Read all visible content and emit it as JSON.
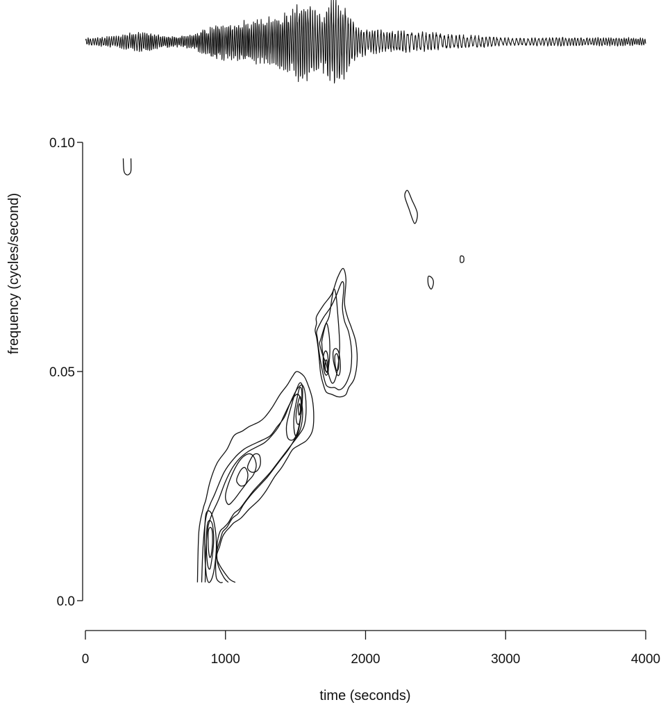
{
  "chart_data": [
    {
      "type": "line",
      "title": "",
      "xlabel": "",
      "ylabel": "",
      "description_kind": "seismogram",
      "xlim": [
        0,
        4000
      ],
      "envelope": {
        "x": [
          0,
          150,
          250,
          350,
          450,
          550,
          650,
          750,
          850,
          950,
          1050,
          1150,
          1250,
          1350,
          1450,
          1500,
          1550,
          1600,
          1650,
          1700,
          1750,
          1800,
          1850,
          1900,
          1950,
          2000,
          2100,
          2200,
          2300,
          2400,
          2500,
          2600,
          2700,
          2800,
          2900,
          3000,
          3200,
          3400,
          3600,
          3800,
          4000
        ],
        "amplitude": [
          0.08,
          0.12,
          0.15,
          0.22,
          0.22,
          0.14,
          0.12,
          0.16,
          0.28,
          0.42,
          0.4,
          0.48,
          0.5,
          0.58,
          0.66,
          0.8,
          1.0,
          0.88,
          0.62,
          0.7,
          0.92,
          1.0,
          0.82,
          0.55,
          0.35,
          0.3,
          0.26,
          0.24,
          0.25,
          0.22,
          0.2,
          0.16,
          0.15,
          0.14,
          0.12,
          0.09,
          0.09,
          0.1,
          0.09,
          0.1,
          0.08
        ]
      }
    },
    {
      "type": "contour",
      "title": "",
      "xlabel": "time (seconds)",
      "ylabel": "frequency (cycles/second)",
      "xlim": [
        0,
        4000
      ],
      "ylim": [
        0.0,
        0.1
      ],
      "xticks": [
        0,
        1000,
        2000,
        3000,
        4000
      ],
      "xtick_labels": [
        "0",
        "1000",
        "2000",
        "3000",
        "4000"
      ],
      "yticks": [
        0.0,
        0.05,
        0.1
      ],
      "ytick_labels": [
        "0.0",
        "0.05",
        "0.10"
      ],
      "grid": false,
      "contours": [
        {
          "kind": "open",
          "x": [
            270,
            275,
            290,
            310,
            325,
            325
          ],
          "y": [
            0.0965,
            0.0938,
            0.093,
            0.093,
            0.0938,
            0.0965
          ]
        },
        {
          "kind": "closed",
          "x": [
            2300,
            2330,
            2370,
            2350,
            2310,
            2280
          ],
          "y": [
            0.0895,
            0.0875,
            0.0845,
            0.0823,
            0.0855,
            0.0883
          ]
        },
        {
          "kind": "closed",
          "x": [
            2450,
            2475,
            2485,
            2470,
            2450,
            2445
          ],
          "y": [
            0.0708,
            0.0704,
            0.0693,
            0.068,
            0.0688,
            0.07
          ]
        },
        {
          "kind": "closed",
          "x": [
            2680,
            2700,
            2700,
            2680,
            2675
          ],
          "y": [
            0.0752,
            0.075,
            0.074,
            0.0738,
            0.0745
          ]
        },
        {
          "kind": "open",
          "x": [
            800,
            810,
            840,
            860,
            890,
            940,
            1010,
            1060,
            1120,
            1170,
            1240,
            1280,
            1330,
            1390,
            1440,
            1480,
            1510,
            1560,
            1590,
            1620,
            1630,
            1620,
            1580,
            1530,
            1480,
            1440,
            1400,
            1350,
            1290,
            1240,
            1170,
            1110,
            1060,
            1030,
            1000,
            980,
            960,
            940,
            1020,
            1070
          ],
          "y": [
            0.004,
            0.015,
            0.02,
            0.022,
            0.026,
            0.03,
            0.033,
            0.036,
            0.037,
            0.038,
            0.039,
            0.04,
            0.042,
            0.045,
            0.047,
            0.049,
            0.05,
            0.049,
            0.047,
            0.044,
            0.04,
            0.037,
            0.035,
            0.034,
            0.033,
            0.031,
            0.029,
            0.027,
            0.024,
            0.022,
            0.02,
            0.018,
            0.017,
            0.016,
            0.015,
            0.014,
            0.012,
            0.009,
            0.005,
            0.004
          ]
        },
        {
          "kind": "open",
          "x": [
            830,
            840,
            860,
            890,
            920,
            990,
            1060,
            1130,
            1190,
            1260,
            1320,
            1370,
            1420,
            1460,
            1490,
            1520,
            1550,
            1570,
            1575,
            1560,
            1520,
            1470,
            1420,
            1370,
            1320,
            1260,
            1200,
            1150,
            1100,
            1060,
            1020,
            990,
            960,
            940,
            945,
            990,
            1020
          ],
          "y": [
            0.004,
            0.012,
            0.018,
            0.021,
            0.023,
            0.028,
            0.031,
            0.033,
            0.034,
            0.035,
            0.036,
            0.038,
            0.04,
            0.043,
            0.045,
            0.0465,
            0.047,
            0.045,
            0.041,
            0.038,
            0.036,
            0.034,
            0.032,
            0.03,
            0.028,
            0.026,
            0.024,
            0.022,
            0.02,
            0.019,
            0.017,
            0.016,
            0.015,
            0.012,
            0.008,
            0.005,
            0.004
          ]
        },
        {
          "kind": "open",
          "x": [
            855,
            860,
            875,
            905,
            950,
            1000,
            1050,
            1100,
            1160,
            1220,
            1280,
            1330,
            1380,
            1420,
            1460,
            1490,
            1520,
            1545,
            1550,
            1530,
            1490,
            1450,
            1400,
            1350,
            1300,
            1240,
            1180,
            1130,
            1090,
            1050,
            1010,
            980,
            960,
            940,
            930,
            935,
            960,
            980
          ],
          "y": [
            0.004,
            0.011,
            0.016,
            0.019,
            0.022,
            0.026,
            0.029,
            0.031,
            0.0325,
            0.0335,
            0.0345,
            0.036,
            0.038,
            0.0405,
            0.043,
            0.0445,
            0.045,
            0.043,
            0.04,
            0.037,
            0.035,
            0.033,
            0.031,
            0.029,
            0.027,
            0.025,
            0.023,
            0.021,
            0.019,
            0.018,
            0.016,
            0.015,
            0.013,
            0.011,
            0.008,
            0.005,
            0.004,
            0.004
          ]
        },
        {
          "kind": "closed",
          "x": [
            855,
            870,
            900,
            925,
            935,
            925,
            905,
            880,
            862,
            852
          ],
          "y": [
            0.0175,
            0.0195,
            0.019,
            0.016,
            0.012,
            0.008,
            0.005,
            0.004,
            0.006,
            0.011
          ]
        },
        {
          "kind": "closed",
          "x": [
            870,
            885,
            905,
            915,
            915,
            905,
            890,
            875,
            866,
            864
          ],
          "y": [
            0.0165,
            0.0175,
            0.0168,
            0.0145,
            0.0125,
            0.0095,
            0.007,
            0.0075,
            0.01,
            0.013
          ]
        },
        {
          "kind": "closed",
          "x": [
            880,
            893,
            905,
            907,
            898,
            887,
            878,
            876
          ],
          "y": [
            0.0155,
            0.016,
            0.0152,
            0.0125,
            0.01,
            0.0095,
            0.0115,
            0.014
          ]
        },
        {
          "kind": "closed",
          "x": [
            1000,
            1040,
            1100,
            1160,
            1200,
            1220,
            1200,
            1160,
            1110,
            1060,
            1020
          ],
          "y": [
            0.023,
            0.027,
            0.0305,
            0.032,
            0.0315,
            0.0295,
            0.0275,
            0.026,
            0.024,
            0.022,
            0.021
          ]
        },
        {
          "kind": "closed",
          "x": [
            1080,
            1110,
            1140,
            1160,
            1145,
            1115,
            1090
          ],
          "y": [
            0.0265,
            0.0285,
            0.029,
            0.0275,
            0.0255,
            0.025,
            0.0255
          ]
        },
        {
          "kind": "closed",
          "x": [
            1160,
            1200,
            1240,
            1250,
            1230,
            1195,
            1165
          ],
          "y": [
            0.0295,
            0.0318,
            0.0318,
            0.03,
            0.0285,
            0.028,
            0.0285
          ]
        },
        {
          "kind": "closed",
          "x": [
            1440,
            1470,
            1500,
            1530,
            1550,
            1545,
            1520,
            1495,
            1470,
            1445,
            1435
          ],
          "y": [
            0.039,
            0.0425,
            0.0455,
            0.0475,
            0.0465,
            0.042,
            0.0375,
            0.0355,
            0.035,
            0.0355,
            0.0372
          ]
        },
        {
          "kind": "closed",
          "x": [
            1490,
            1510,
            1530,
            1545,
            1540,
            1520,
            1500,
            1488
          ],
          "y": [
            0.0405,
            0.044,
            0.0465,
            0.0455,
            0.041,
            0.037,
            0.036,
            0.038
          ]
        },
        {
          "kind": "closed",
          "x": [
            1505,
            1520,
            1535,
            1540,
            1530,
            1515,
            1505
          ],
          "y": [
            0.041,
            0.0435,
            0.0445,
            0.042,
            0.039,
            0.0385,
            0.0395
          ]
        },
        {
          "kind": "closed",
          "x": [
            1520,
            1530,
            1535,
            1525
          ],
          "y": [
            0.042,
            0.043,
            0.0415,
            0.0405
          ]
        },
        {
          "kind": "closed",
          "x": [
            1650,
            1700,
            1760,
            1800,
            1840,
            1860,
            1850,
            1870,
            1900,
            1930,
            1940,
            1920,
            1880,
            1860,
            1830,
            1800,
            1760,
            1720,
            1700,
            1680,
            1670,
            1660,
            1650,
            1640,
            1650
          ],
          "y": [
            0.062,
            0.0645,
            0.067,
            0.0705,
            0.0725,
            0.07,
            0.065,
            0.062,
            0.0595,
            0.0565,
            0.0525,
            0.0485,
            0.0465,
            0.045,
            0.0445,
            0.0445,
            0.045,
            0.0455,
            0.047,
            0.0495,
            0.0525,
            0.0555,
            0.0575,
            0.059,
            0.0605
          ]
        },
        {
          "kind": "closed",
          "x": [
            1660,
            1700,
            1750,
            1790,
            1830,
            1845,
            1835,
            1850,
            1880,
            1900,
            1895,
            1870,
            1840,
            1810,
            1780,
            1750,
            1720,
            1700,
            1680,
            1665,
            1655,
            1650
          ],
          "y": [
            0.0595,
            0.0618,
            0.064,
            0.0665,
            0.0695,
            0.0685,
            0.064,
            0.061,
            0.0585,
            0.0545,
            0.0505,
            0.048,
            0.0465,
            0.046,
            0.0465,
            0.0465,
            0.047,
            0.049,
            0.052,
            0.055,
            0.0575,
            0.0585
          ]
        },
        {
          "kind": "closed",
          "x": [
            1680,
            1710,
            1740,
            1760,
            1775,
            1790,
            1800,
            1810,
            1815,
            1800,
            1780,
            1760,
            1740,
            1720,
            1695,
            1680,
            1672
          ],
          "y": [
            0.057,
            0.06,
            0.062,
            0.066,
            0.068,
            0.0665,
            0.063,
            0.059,
            0.055,
            0.0505,
            0.048,
            0.0475,
            0.049,
            0.0515,
            0.0535,
            0.055,
            0.0562
          ]
        },
        {
          "kind": "closed",
          "x": [
            1690,
            1720,
            1740,
            1745,
            1738,
            1725,
            1710,
            1700,
            1692,
            1688
          ],
          "y": [
            0.057,
            0.0605,
            0.058,
            0.0545,
            0.0515,
            0.05,
            0.0505,
            0.0525,
            0.0545,
            0.056
          ]
        },
        {
          "kind": "closed",
          "x": [
            1700,
            1715,
            1730,
            1735,
            1725,
            1710,
            1698
          ],
          "y": [
            0.0535,
            0.0545,
            0.0535,
            0.0505,
            0.0493,
            0.0495,
            0.0515
          ]
        },
        {
          "kind": "closed",
          "x": [
            1712,
            1722,
            1730,
            1725,
            1713
          ],
          "y": [
            0.052,
            0.0525,
            0.051,
            0.0498,
            0.0505
          ]
        },
        {
          "kind": "closed",
          "x": [
            1770,
            1790,
            1810,
            1820,
            1815,
            1800,
            1785,
            1770
          ],
          "y": [
            0.0545,
            0.055,
            0.054,
            0.0515,
            0.0495,
            0.0492,
            0.0505,
            0.0525
          ]
        },
        {
          "kind": "closed",
          "x": [
            1782,
            1798,
            1808,
            1805,
            1792,
            1782
          ],
          "y": [
            0.0535,
            0.0538,
            0.0522,
            0.0505,
            0.0503,
            0.0518
          ]
        }
      ]
    }
  ]
}
